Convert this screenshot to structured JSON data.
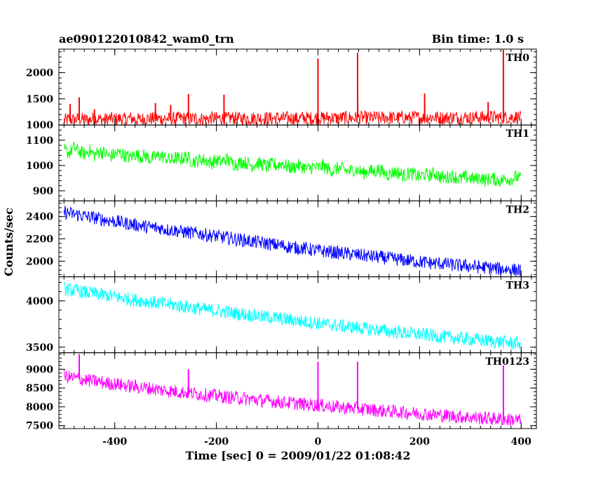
{
  "header": {
    "title": "ae090122010842_wam0_trn",
    "bin_time": "Bin time: 1.0 s"
  },
  "xlabel": "Time [sec] 0 = 2009/01/22 01:08:42",
  "ylabel": "Counts/sec",
  "chart_data": {
    "type": "line",
    "title": "ae090122010842_wam0_trn",
    "subtitle": "Bin time: 1.0 s",
    "xlabel": "Time [sec] 0 = 2009/01/22 01:08:42",
    "ylabel": "Counts/sec",
    "xlim": [
      -510,
      430
    ],
    "xticks": [
      -400,
      -200,
      0,
      200,
      400
    ],
    "grid": false,
    "note_values": "Series values sampled every 10 s from a 1.0 s binned lightcurve; spikes given separately.",
    "panels": [
      {
        "name": "TH0",
        "color": "#ff0000",
        "ylim": [
          1000,
          2450
        ],
        "yticks": [
          1000,
          1500,
          2000
        ],
        "x_start": -500,
        "x_step": 10,
        "values": [
          1085,
          1110,
          1100,
          1120,
          1105,
          1095,
          1130,
          1110,
          1100,
          1125,
          1115,
          1120,
          1105,
          1130,
          1110,
          1100,
          1125,
          1120,
          1130,
          1115,
          1125,
          1110,
          1120,
          1135,
          1125,
          1115,
          1130,
          1120,
          1110,
          1135,
          1125,
          1130,
          1115,
          1140,
          1125,
          1120,
          1130,
          1125,
          1140,
          1130,
          1135,
          1120,
          1140,
          1125,
          1135,
          1130,
          1120,
          1140,
          1135,
          1125,
          1140,
          1130,
          1145,
          1135,
          1125,
          1140,
          1135,
          1130,
          1145,
          1140,
          1130,
          1145,
          1135,
          1140,
          1150,
          1135,
          1140,
          1145,
          1130,
          1150,
          1140,
          1135,
          1150,
          1145,
          1140,
          1135,
          1150,
          1145,
          1140,
          1150,
          1135,
          1150,
          1145,
          1140,
          1155,
          1145,
          1140,
          1150,
          1145,
          1155,
          1140
        ],
        "spikes": [
          [
            -488,
            1400
          ],
          [
            -470,
            1530
          ],
          [
            -440,
            1300
          ],
          [
            -320,
            1420
          ],
          [
            -290,
            1380
          ],
          [
            -255,
            1590
          ],
          [
            -185,
            1580
          ],
          [
            0,
            2270
          ],
          [
            78,
            2380
          ],
          [
            210,
            1600
          ],
          [
            335,
            1440
          ],
          [
            365,
            2450
          ]
        ]
      },
      {
        "name": "TH1",
        "color": "#00ff00",
        "ylim": [
          860,
          1160
        ],
        "yticks": [
          900,
          1000,
          1100
        ],
        "x_start": -500,
        "x_step": 10,
        "values": [
          1060,
          1050,
          1070,
          1055,
          1045,
          1060,
          1040,
          1055,
          1050,
          1035,
          1045,
          1050,
          1040,
          1030,
          1045,
          1035,
          1040,
          1025,
          1035,
          1040,
          1030,
          1020,
          1030,
          1025,
          1035,
          1020,
          1015,
          1025,
          1020,
          1010,
          1020,
          1015,
          1025,
          1010,
          1005,
          1015,
          1010,
          1000,
          1010,
          1005,
          995,
          1005,
          1000,
          1010,
          995,
          990,
          1000,
          995,
          985,
          995,
          990,
          1000,
          985,
          980,
          990,
          985,
          975,
          985,
          980,
          970,
          980,
          975,
          985,
          970,
          965,
          975,
          970,
          960,
          970,
          965,
          955,
          965,
          960,
          970,
          955,
          950,
          960,
          955,
          945,
          955,
          950,
          945,
          955,
          940,
          950,
          945,
          940,
          950,
          945,
          955,
          945
        ],
        "spikes": []
      },
      {
        "name": "TH2",
        "color": "#0000ff",
        "ylim": [
          1860,
          2540
        ],
        "yticks": [
          2000,
          2200,
          2400
        ],
        "x_start": -500,
        "x_step": 10,
        "values": [
          2440,
          2430,
          2420,
          2415,
          2405,
          2395,
          2390,
          2380,
          2370,
          2365,
          2355,
          2350,
          2340,
          2335,
          2325,
          2320,
          2310,
          2305,
          2300,
          2295,
          2285,
          2280,
          2275,
          2265,
          2260,
          2255,
          2250,
          2245,
          2235,
          2230,
          2225,
          2215,
          2210,
          2205,
          2195,
          2190,
          2185,
          2175,
          2170,
          2165,
          2160,
          2150,
          2145,
          2140,
          2130,
          2125,
          2120,
          2115,
          2110,
          2100,
          2095,
          2090,
          2085,
          2080,
          2075,
          2070,
          2065,
          2060,
          2055,
          2050,
          2045,
          2040,
          2035,
          2030,
          2025,
          2020,
          2015,
          2010,
          2005,
          2000,
          1995,
          1990,
          1985,
          1980,
          1980,
          1975,
          1970,
          1965,
          1960,
          1960,
          1955,
          1950,
          1945,
          1945,
          1940,
          1935,
          1930,
          1930,
          1925,
          1920,
          1915
        ],
        "spikes": []
      },
      {
        "name": "TH3",
        "color": "#00ffff",
        "ylim": [
          3440,
          4260
        ],
        "yticks": [
          3500,
          4000
        ],
        "x_start": -500,
        "x_step": 10,
        "values": [
          4130,
          4120,
          4110,
          4105,
          4095,
          4085,
          4080,
          4070,
          4060,
          4055,
          4045,
          4035,
          4030,
          4020,
          4010,
          4005,
          3995,
          3990,
          3980,
          3975,
          3965,
          3960,
          3950,
          3945,
          3935,
          3930,
          3920,
          3915,
          3905,
          3900,
          3895,
          3885,
          3880,
          3870,
          3865,
          3860,
          3850,
          3845,
          3840,
          3830,
          3825,
          3820,
          3810,
          3805,
          3800,
          3790,
          3785,
          3780,
          3770,
          3765,
          3760,
          3750,
          3745,
          3740,
          3735,
          3725,
          3720,
          3715,
          3710,
          3700,
          3695,
          3690,
          3685,
          3680,
          3670,
          3665,
          3660,
          3655,
          3650,
          3645,
          3640,
          3635,
          3630,
          3620,
          3615,
          3610,
          3605,
          3600,
          3595,
          3590,
          3585,
          3580,
          3575,
          3570,
          3565,
          3560,
          3555,
          3550,
          3545,
          3545,
          3540
        ],
        "spikes": []
      },
      {
        "name": "TH0123",
        "color": "#ff00ff",
        "ylim": [
          7420,
          9440
        ],
        "yticks": [
          7500,
          8000,
          8500,
          9000
        ],
        "x_start": -500,
        "x_step": 10,
        "values": [
          8820,
          8790,
          8770,
          8740,
          8720,
          8700,
          8680,
          8660,
          8640,
          8620,
          8610,
          8590,
          8570,
          8550,
          8540,
          8520,
          8500,
          8490,
          8470,
          8450,
          8440,
          8420,
          8410,
          8390,
          8380,
          8360,
          8350,
          8330,
          8320,
          8300,
          8290,
          8280,
          8260,
          8250,
          8240,
          8220,
          8210,
          8200,
          8180,
          8170,
          8160,
          8150,
          8130,
          8120,
          8110,
          8100,
          8090,
          8070,
          8060,
          8050,
          8040,
          8030,
          8020,
          8000,
          7990,
          7980,
          7970,
          7960,
          7950,
          7940,
          7930,
          7920,
          7900,
          7890,
          7880,
          7870,
          7860,
          7850,
          7840,
          7830,
          7820,
          7810,
          7800,
          7790,
          7780,
          7770,
          7760,
          7750,
          7740,
          7730,
          7720,
          7710,
          7700,
          7700,
          7690,
          7680,
          7670,
          7660,
          7660,
          7650,
          7640
        ],
        "spikes": [
          [
            -470,
            9400
          ],
          [
            -255,
            9000
          ],
          [
            0,
            9200
          ],
          [
            78,
            9200
          ],
          [
            365,
            9100
          ]
        ]
      }
    ]
  }
}
